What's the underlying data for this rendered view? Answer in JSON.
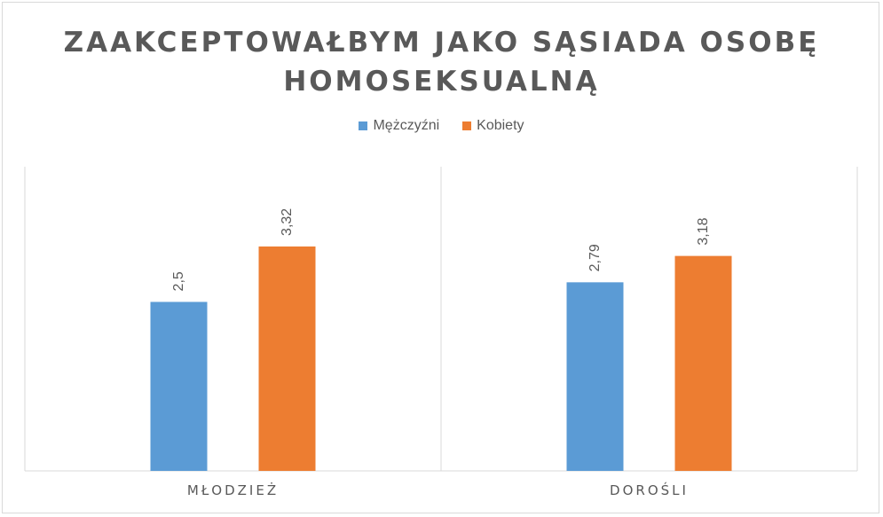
{
  "chart_data": {
    "type": "bar",
    "title_lines": [
      "ZAAKCEPTOWAŁBYM JAKO SĄSIADA OSOBĘ",
      "HOMOSEKSUALNĄ"
    ],
    "categories": [
      "MŁODZIEŻ",
      "DOROŚLI"
    ],
    "series": [
      {
        "name": "Mężczyźni",
        "values": [
          2.5,
          2.79
        ],
        "labels": [
          "2,5",
          "2,79"
        ],
        "color": "#5b9bd5"
      },
      {
        "name": "Kobiety",
        "values": [
          3.32,
          3.18
        ],
        "labels": [
          "3,32",
          "3,18"
        ],
        "color": "#ed7d31"
      }
    ],
    "ylim": [
      0,
      4.5
    ],
    "legend_position": "top",
    "gridlines": false
  }
}
